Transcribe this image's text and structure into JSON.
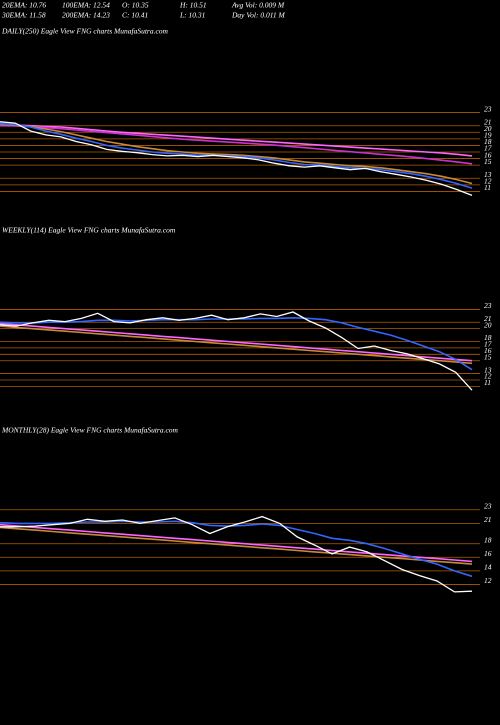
{
  "header": {
    "row1": [
      "20EMA: 10.76",
      "100EMA: 12.54",
      "O: 10.35",
      "H: 10.51",
      "Avg Vol: 0.009 M"
    ],
    "row2": [
      "30EMA: 11.58",
      "200EMA: 14.23",
      "C: 10.41",
      "L: 10.31",
      "Day Vol: 0.011 M"
    ]
  },
  "chart_data": [
    {
      "type": "line",
      "title": "DAILY(250) Eagle  View  FNG charts MunafaSutra.com",
      "ylim": [
        10,
        24
      ],
      "yticks": [
        23,
        21,
        20,
        19,
        18,
        17,
        16,
        15,
        13,
        12,
        11
      ],
      "tick_color": "#b35c00",
      "series": [
        {
          "color": "#ff66ff",
          "values": [
            21.2,
            21.1,
            21.0,
            20.9,
            20.8,
            20.6,
            20.4,
            20.2,
            20.0,
            19.85,
            19.7,
            19.55,
            19.4,
            19.25,
            19.1,
            18.95,
            18.8,
            18.65,
            18.5,
            18.35,
            18.2,
            18.05,
            17.9,
            17.75,
            17.6,
            17.45,
            17.3,
            17.15,
            17.0,
            16.85,
            16.65,
            16.4
          ]
        },
        {
          "color": "#cc33cc",
          "values": [
            21.0,
            20.95,
            20.85,
            20.7,
            20.55,
            20.35,
            20.15,
            19.95,
            19.75,
            19.55,
            19.35,
            19.15,
            18.95,
            18.8,
            18.65,
            18.5,
            18.35,
            18.2,
            18.05,
            17.85,
            17.65,
            17.45,
            17.25,
            17.05,
            16.85,
            16.65,
            16.45,
            16.25,
            16.0,
            15.75,
            15.5,
            15.2
          ]
        },
        {
          "color": "#c88a3a",
          "values": [
            21.2,
            21.1,
            20.9,
            20.5,
            20.1,
            19.6,
            19.1,
            18.6,
            18.2,
            17.8,
            17.5,
            17.2,
            17.0,
            16.8,
            16.7,
            16.6,
            16.5,
            16.3,
            16.1,
            15.8,
            15.5,
            15.3,
            15.1,
            14.9,
            14.8,
            14.6,
            14.3,
            14.0,
            13.7,
            13.3,
            12.8,
            12.2
          ]
        },
        {
          "color": "#3366ff",
          "values": [
            21.3,
            21.2,
            20.8,
            20.2,
            19.7,
            19.1,
            18.6,
            18.0,
            17.6,
            17.3,
            17.0,
            16.8,
            16.7,
            16.5,
            16.5,
            16.4,
            16.3,
            16.1,
            15.8,
            15.4,
            15.1,
            15.0,
            14.8,
            14.6,
            14.5,
            14.3,
            14.0,
            13.7,
            13.3,
            12.8,
            12.2,
            11.5
          ]
        },
        {
          "color": "#ffffff",
          "values": [
            21.6,
            21.4,
            20.2,
            19.6,
            19.3,
            18.6,
            18.1,
            17.4,
            17.1,
            16.9,
            16.6,
            16.4,
            16.5,
            16.3,
            16.5,
            16.3,
            16.1,
            15.8,
            15.3,
            14.9,
            14.7,
            14.9,
            14.6,
            14.3,
            14.5,
            14.0,
            13.6,
            13.2,
            12.7,
            12.1,
            11.3,
            10.4
          ]
        }
      ]
    },
    {
      "type": "line",
      "title": "WEEKLY(114) Eagle  View  FNG charts MunafaSutra.com",
      "ylim": [
        9.5,
        24
      ],
      "yticks": [
        23,
        21,
        20,
        18,
        17,
        16,
        15,
        13,
        12,
        11
      ],
      "tick_color": "#b35c00",
      "series": [
        {
          "color": "#c88a3a",
          "values": [
            20.4,
            20.2,
            20.0,
            19.8,
            19.6,
            19.4,
            19.2,
            19.0,
            18.8,
            18.6,
            18.4,
            18.2,
            18.0,
            17.8,
            17.6,
            17.4,
            17.2,
            17.0,
            16.8,
            16.6,
            16.4,
            16.2,
            16.0,
            15.8,
            15.6,
            15.4,
            15.2,
            15.0,
            14.8,
            14.6
          ]
        },
        {
          "color": "#ff66ff",
          "values": [
            20.8,
            20.6,
            20.4,
            20.2,
            20.0,
            19.8,
            19.6,
            19.4,
            19.2,
            19.0,
            18.8,
            18.6,
            18.4,
            18.2,
            18.0,
            17.8,
            17.6,
            17.4,
            17.2,
            17.0,
            16.8,
            16.6,
            16.4,
            16.2,
            16.0,
            15.8,
            15.6,
            15.4,
            15.2,
            15.0
          ]
        },
        {
          "color": "#3366ff",
          "values": [
            21.0,
            20.9,
            20.9,
            21.0,
            21.0,
            21.1,
            21.3,
            21.3,
            21.2,
            21.3,
            21.4,
            21.4,
            21.4,
            21.5,
            21.5,
            21.5,
            21.6,
            21.6,
            21.7,
            21.6,
            21.4,
            20.9,
            20.2,
            19.6,
            19.0,
            18.2,
            17.3,
            16.4,
            15.2,
            13.6
          ]
        },
        {
          "color": "#ffffff",
          "values": [
            20.6,
            20.4,
            20.9,
            21.3,
            21.1,
            21.6,
            22.4,
            21.1,
            20.9,
            21.4,
            21.7,
            21.3,
            21.6,
            22.1,
            21.4,
            21.7,
            22.3,
            21.9,
            22.6,
            21.2,
            20.1,
            18.6,
            16.9,
            17.3,
            16.6,
            16.1,
            15.3,
            14.5,
            13.2,
            10.4
          ]
        }
      ]
    },
    {
      "type": "line",
      "title": "MONTHLY(28) Eagle  View  FNG charts MunafaSutra.com",
      "ylim": [
        10,
        24
      ],
      "yticks": [
        23,
        21,
        18,
        16,
        14,
        12
      ],
      "tick_color": "#b35c00",
      "series": [
        {
          "color": "#c88a3a",
          "values": [
            20.4,
            20.2,
            20.0,
            19.8,
            19.6,
            19.4,
            19.2,
            19.0,
            18.8,
            18.6,
            18.4,
            18.2,
            18.0,
            17.8,
            17.6,
            17.4,
            17.2,
            17.0,
            16.8,
            16.6,
            16.4,
            16.2,
            16.0,
            15.8,
            15.6,
            15.4,
            15.2,
            15.0
          ]
        },
        {
          "color": "#ff66ff",
          "values": [
            20.8,
            20.6,
            20.4,
            20.2,
            20.0,
            19.8,
            19.6,
            19.4,
            19.2,
            19.0,
            18.8,
            18.6,
            18.4,
            18.2,
            18.0,
            17.8,
            17.6,
            17.4,
            17.2,
            17.0,
            16.8,
            16.6,
            16.4,
            16.2,
            16.0,
            15.8,
            15.6,
            15.4
          ]
        },
        {
          "color": "#3366ff",
          "values": [
            21.1,
            21.0,
            21.0,
            21.0,
            21.1,
            21.2,
            21.2,
            21.3,
            21.2,
            21.2,
            21.3,
            21.1,
            20.7,
            20.6,
            20.7,
            20.9,
            20.7,
            20.1,
            19.5,
            18.8,
            18.5,
            18.0,
            17.3,
            16.5,
            15.7,
            15.0,
            14.0,
            13.2
          ]
        },
        {
          "color": "#ffffff",
          "values": [
            20.5,
            20.5,
            20.6,
            20.8,
            21.0,
            21.6,
            21.3,
            21.5,
            21.0,
            21.4,
            21.8,
            20.8,
            19.5,
            20.5,
            21.2,
            22.0,
            21.0,
            19.0,
            17.8,
            16.5,
            17.5,
            16.8,
            15.5,
            14.2,
            13.3,
            12.5,
            10.9,
            11.0
          ]
        }
      ]
    }
  ]
}
